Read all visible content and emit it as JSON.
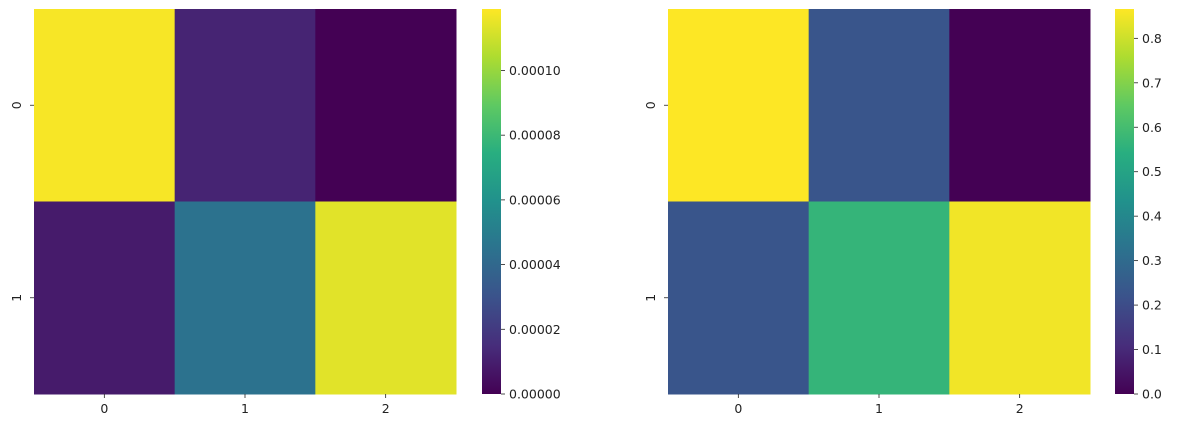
{
  "chart_data": [
    {
      "type": "heatmap",
      "title": "",
      "xlabel": "",
      "ylabel": "",
      "x_categories": [
        "0",
        "1",
        "2"
      ],
      "y_categories": [
        "0",
        "1"
      ],
      "values": [
        [
          0.000118,
          1.2e-05,
          0.0
        ],
        [
          9e-06,
          4.5e-05,
          0.000114
        ]
      ],
      "colormap": "viridis",
      "colorbar": {
        "range": [
          0,
          0.000119
        ],
        "ticks": [
          0,
          2e-05,
          4e-05,
          6e-05,
          8e-05,
          0.0001
        ],
        "tick_labels": [
          "0.00000",
          "0.00002",
          "0.00004",
          "0.00006",
          "0.00008",
          "0.00010"
        ]
      }
    },
    {
      "type": "heatmap",
      "title": "",
      "xlabel": "",
      "ylabel": "",
      "x_categories": [
        "0",
        "1",
        "2"
      ],
      "y_categories": [
        "0",
        "1"
      ],
      "values": [
        [
          0.87,
          0.23,
          0.0
        ],
        [
          0.23,
          0.57,
          0.85
        ]
      ],
      "colormap": "viridis",
      "colorbar": {
        "range": [
          0,
          0.866
        ],
        "ticks": [
          0,
          0.1,
          0.2,
          0.3,
          0.4,
          0.5,
          0.6,
          0.7,
          0.8
        ],
        "tick_labels": [
          "0.0",
          "0.1",
          "0.2",
          "0.3",
          "0.4",
          "0.5",
          "0.6",
          "0.7",
          "0.8"
        ]
      }
    }
  ]
}
